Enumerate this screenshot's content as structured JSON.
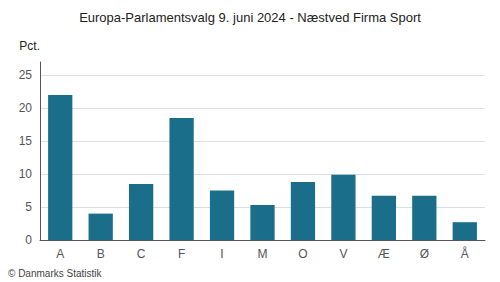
{
  "chart_data": {
    "type": "bar",
    "title": "Europa-Parlamentsvalg 9. juni 2024 - Næstved Firma Sport",
    "ylabel": "Pct.",
    "annotations": [
      "© Danmarks Statistik"
    ],
    "categories": [
      "A",
      "B",
      "C",
      "F",
      "I",
      "M",
      "O",
      "V",
      "Æ",
      "Ø",
      "Å"
    ],
    "values": [
      22.0,
      4.0,
      8.5,
      18.5,
      7.5,
      5.3,
      8.8,
      9.9,
      6.7,
      6.7,
      2.7
    ],
    "color": "#1a6e8a",
    "ylim": [
      0,
      27
    ],
    "yticks": [
      0,
      5,
      10,
      15,
      20,
      25
    ],
    "grid": true
  }
}
